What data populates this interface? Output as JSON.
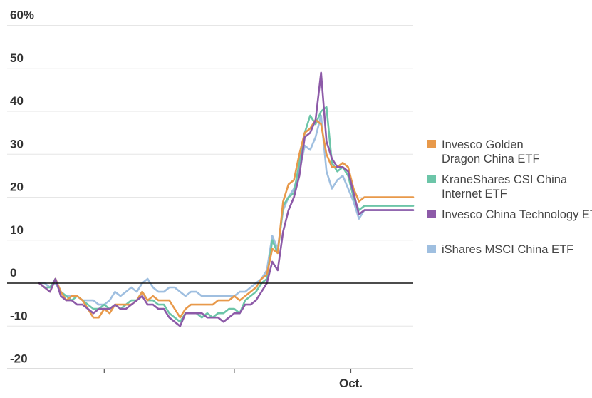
{
  "chart_data": {
    "type": "line",
    "title": "",
    "xlabel": "",
    "ylabel": "",
    "ylim": [
      -20,
      60
    ],
    "yticks": [
      -20,
      -10,
      0,
      10,
      20,
      30,
      40,
      50,
      60
    ],
    "ytick_labels": [
      "-20",
      "-10",
      "0",
      "10",
      "20",
      "30",
      "40",
      "50",
      "60%"
    ],
    "x": [
      0,
      1,
      2,
      3,
      4,
      5,
      6,
      7,
      8,
      9,
      10,
      11,
      12,
      13,
      14,
      15,
      16,
      17,
      18,
      19,
      20,
      21,
      22,
      23,
      24,
      25,
      26,
      27,
      28,
      29,
      30,
      31,
      32,
      33,
      34,
      35,
      36,
      37,
      38,
      39,
      40,
      41,
      42,
      43,
      44,
      45,
      46,
      47,
      48,
      49,
      50,
      51,
      52,
      53,
      54,
      55,
      56,
      57,
      58,
      59,
      60,
      61,
      62,
      63,
      64,
      65,
      66,
      67,
      68,
      69
    ],
    "xlim": [
      0,
      69
    ],
    "xticks": [
      {
        "x": 12,
        "label": ""
      },
      {
        "x": 36,
        "label": ""
      },
      {
        "x": 57.5,
        "label": "Oct."
      }
    ],
    "legend_position": "right",
    "series": [
      {
        "name": "Invesco Golden Dragon China ETF",
        "color": "#e8994a",
        "values": [
          0,
          -1,
          -2,
          1,
          -2,
          -4,
          -3,
          -3,
          -4,
          -6,
          -8,
          -8,
          -6,
          -7,
          -5,
          -5,
          -5,
          -5,
          -4,
          -2,
          -4,
          -3,
          -4,
          -4,
          -4,
          -6,
          -8,
          -6,
          -5,
          -5,
          -5,
          -5,
          -5,
          -4,
          -4,
          -4,
          -3,
          -4,
          -3,
          -2,
          -1,
          1,
          2,
          8,
          7,
          19,
          23,
          24,
          30,
          35,
          36,
          38,
          37,
          30,
          27,
          27,
          28,
          27,
          22,
          19,
          20,
          20,
          20,
          20,
          20,
          20,
          20,
          20,
          20,
          20
        ]
      },
      {
        "name": "KraneShares CSI China Internet ETF",
        "color": "#6cc5a8",
        "values": [
          0,
          -1,
          -1,
          1,
          -2,
          -3,
          -4,
          -3,
          -4,
          -5,
          -6,
          -6,
          -5,
          -6,
          -5,
          -6,
          -5,
          -4,
          -4,
          -2,
          -4,
          -4,
          -5,
          -5,
          -7,
          -8,
          -9,
          -7,
          -7,
          -7,
          -8,
          -7,
          -8,
          -7,
          -7,
          -6,
          -6,
          -7,
          -4,
          -3,
          -2,
          0,
          1,
          10,
          7,
          18,
          20,
          21,
          28,
          35,
          39,
          37,
          40,
          41,
          28,
          26,
          27,
          25,
          20,
          17,
          18,
          18,
          18,
          18,
          18,
          18,
          18,
          18,
          18,
          18
        ]
      },
      {
        "name": "Invesco China Technology ETF",
        "color": "#8d5aa8",
        "values": [
          0,
          -1,
          -2,
          1,
          -3,
          -4,
          -4,
          -5,
          -5,
          -6,
          -7,
          -6,
          -6,
          -6,
          -5,
          -6,
          -6,
          -5,
          -4,
          -3,
          -5,
          -5,
          -6,
          -6,
          -8,
          -9,
          -10,
          -7,
          -7,
          -7,
          -7,
          -8,
          -8,
          -8,
          -9,
          -8,
          -7,
          -7,
          -5,
          -5,
          -4,
          -2,
          0,
          5,
          3,
          12,
          17,
          20,
          25,
          34,
          35,
          38,
          49,
          33,
          29,
          27,
          27,
          26,
          21,
          16,
          17,
          17,
          17,
          17,
          17,
          17,
          17,
          17,
          17,
          17
        ]
      },
      {
        "name": "iShares MSCI China ETF",
        "color": "#9fbfe0",
        "values": [
          0,
          0,
          -1,
          0,
          -2,
          -3,
          -3,
          -3,
          -4,
          -4,
          -4,
          -5,
          -5,
          -4,
          -2,
          -3,
          -2,
          -1,
          -2,
          0,
          1,
          -1,
          -2,
          -2,
          -1,
          -1,
          -2,
          -3,
          -2,
          -2,
          -3,
          -3,
          -3,
          -3,
          -3,
          -3,
          -3,
          -2,
          -2,
          -1,
          0,
          1,
          3,
          11,
          8,
          17,
          20,
          22,
          26,
          32,
          31,
          34,
          39,
          26,
          22,
          24,
          25,
          22,
          19,
          15,
          17,
          17,
          17,
          17,
          17,
          17,
          17,
          17,
          17,
          17
        ]
      }
    ]
  }
}
